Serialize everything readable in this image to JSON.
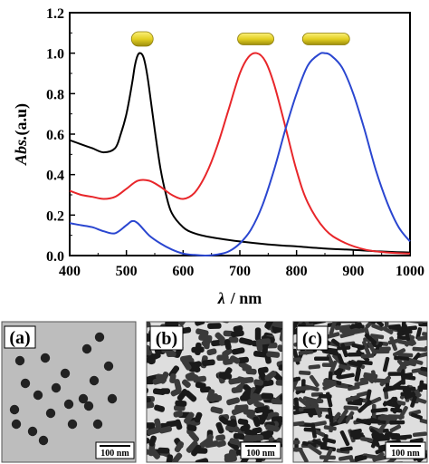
{
  "chart_data": {
    "type": "line",
    "xlabel_symbol": "λ",
    "xlabel_unit": "/ nm",
    "ylabel_italic": "Abs.",
    "ylabel_unit": "(a.u)",
    "xlim": [
      400,
      1000
    ],
    "ylim": [
      0,
      1.2
    ],
    "xticks": [
      400,
      500,
      600,
      700,
      800,
      900,
      1000
    ],
    "yticks": [
      "0.0",
      "0.2",
      "0.4",
      "0.6",
      "0.8",
      "1.0",
      "1.2"
    ],
    "grid": false,
    "legend": "none",
    "series": [
      {
        "color": "#000000",
        "x": [
          400,
          420,
          440,
          460,
          480,
          490,
          500,
          510,
          515,
          520,
          525,
          530,
          535,
          540,
          550,
          560,
          570,
          580,
          600,
          620,
          650,
          700,
          750,
          800,
          850,
          900,
          950,
          1000
        ],
        "y": [
          0.57,
          0.55,
          0.53,
          0.51,
          0.53,
          0.6,
          0.7,
          0.85,
          0.94,
          0.99,
          1.0,
          0.98,
          0.92,
          0.83,
          0.62,
          0.43,
          0.3,
          0.21,
          0.14,
          0.11,
          0.09,
          0.07,
          0.055,
          0.045,
          0.035,
          0.028,
          0.02,
          0.015
        ]
      },
      {
        "color": "#e8262a",
        "x": [
          400,
          420,
          440,
          460,
          480,
          500,
          520,
          540,
          560,
          580,
          600,
          620,
          640,
          660,
          680,
          700,
          715,
          730,
          745,
          760,
          780,
          800,
          820,
          850,
          880,
          920,
          960,
          1000
        ],
        "y": [
          0.32,
          0.3,
          0.29,
          0.28,
          0.29,
          0.33,
          0.37,
          0.37,
          0.34,
          0.3,
          0.28,
          0.31,
          0.4,
          0.54,
          0.72,
          0.9,
          0.98,
          1.0,
          0.96,
          0.85,
          0.64,
          0.42,
          0.26,
          0.13,
          0.07,
          0.03,
          0.015,
          0.01
        ]
      },
      {
        "color": "#2a46d0",
        "x": [
          400,
          420,
          440,
          460,
          480,
          500,
          510,
          520,
          540,
          560,
          580,
          600,
          620,
          640,
          660,
          680,
          700,
          720,
          740,
          760,
          780,
          800,
          820,
          840,
          850,
          860,
          880,
          900,
          920,
          940,
          960,
          980,
          1000
        ],
        "y": [
          0.16,
          0.15,
          0.14,
          0.12,
          0.11,
          0.15,
          0.17,
          0.16,
          0.1,
          0.06,
          0.03,
          0.01,
          0.003,
          0.0,
          0.005,
          0.02,
          0.06,
          0.13,
          0.25,
          0.42,
          0.62,
          0.8,
          0.94,
          0.995,
          1.0,
          0.99,
          0.93,
          0.8,
          0.62,
          0.42,
          0.26,
          0.14,
          0.07
        ]
      }
    ],
    "nanoparticle_markers": [
      {
        "kind": "sphere",
        "at_x": 528,
        "at_y": 1.07
      },
      {
        "kind": "short-rod",
        "at_x": 728,
        "at_y": 1.07
      },
      {
        "kind": "long-rod",
        "at_x": 852,
        "at_y": 1.07
      }
    ]
  },
  "panels": [
    {
      "letter": "(a)",
      "scale": "100 nm",
      "particle": "sphere"
    },
    {
      "letter": "(b)",
      "scale": "100 nm",
      "particle": "short-rod"
    },
    {
      "letter": "(c)",
      "scale": "100 nm",
      "particle": "long-rod"
    }
  ],
  "colors": {
    "gold": "#e3d023",
    "gold_dark": "#9c8c0c",
    "tem_bg_a": "#bcbcbc",
    "tem_bg_bc": "#dcdcdc",
    "particle": "#1e1e1e"
  }
}
